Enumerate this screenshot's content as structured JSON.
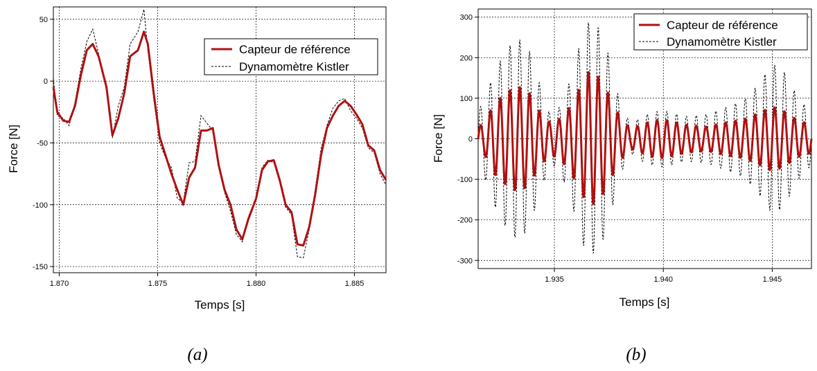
{
  "chart_data": [
    {
      "type": "line",
      "caption": "(a)",
      "xlabel": "Temps [s]",
      "ylabel": "Force [N]",
      "xlim": [
        1.8697,
        1.8866
      ],
      "ylim": [
        -155,
        60
      ],
      "xticks": [
        1.87,
        1.875,
        1.88,
        1.885
      ],
      "xtick_labels": [
        "1.870",
        "1.875",
        "1.880",
        "1.885"
      ],
      "yticks": [
        50,
        0,
        -50,
        -100,
        -150
      ],
      "ytick_labels": [
        "50",
        "0",
        "-50",
        "-100",
        "-150"
      ],
      "grid": true,
      "legend": "top-right",
      "series": [
        {
          "name": "Capteur de référence",
          "color": "#b01010",
          "style": "solid",
          "x": [
            1.8697,
            1.8699,
            1.8702,
            1.8705,
            1.8708,
            1.8711,
            1.8714,
            1.8717,
            1.872,
            1.8724,
            1.8727,
            1.873,
            1.8733,
            1.8736,
            1.874,
            1.8743,
            1.8745,
            1.8748,
            1.8751,
            1.8754,
            1.8757,
            1.876,
            1.8763,
            1.8766,
            1.8769,
            1.8772,
            1.8775,
            1.8778,
            1.8781,
            1.8784,
            1.8787,
            1.879,
            1.8793,
            1.8796,
            1.88,
            1.8803,
            1.8806,
            1.8809,
            1.8812,
            1.8815,
            1.8818,
            1.8821,
            1.8824,
            1.8827,
            1.883,
            1.8833,
            1.8836,
            1.8839,
            1.8842,
            1.8845,
            1.8848,
            1.8851,
            1.8854,
            1.8857,
            1.886,
            1.8863,
            1.8866
          ],
          "y": [
            -5,
            -25,
            -32,
            -33,
            -20,
            5,
            25,
            30,
            20,
            -5,
            -44,
            -30,
            -10,
            20,
            25,
            40,
            30,
            -10,
            -45,
            -60,
            -75,
            -88,
            -100,
            -78,
            -70,
            -40,
            -40,
            -38,
            -68,
            -88,
            -100,
            -120,
            -128,
            -112,
            -95,
            -72,
            -65,
            -64,
            -80,
            -100,
            -106,
            -132,
            -133,
            -118,
            -92,
            -60,
            -38,
            -28,
            -20,
            -16,
            -20,
            -27,
            -35,
            -52,
            -56,
            -72,
            -80
          ]
        },
        {
          "name": "Dynamomètre Kistler",
          "color": "#000000",
          "style": "dashed",
          "x": [
            1.8697,
            1.8699,
            1.8702,
            1.8705,
            1.8708,
            1.8711,
            1.8714,
            1.8717,
            1.872,
            1.8724,
            1.8727,
            1.873,
            1.8733,
            1.8736,
            1.874,
            1.8743,
            1.8745,
            1.8748,
            1.8751,
            1.8754,
            1.8757,
            1.876,
            1.8763,
            1.8766,
            1.8769,
            1.8772,
            1.8775,
            1.8778,
            1.8781,
            1.8784,
            1.8787,
            1.879,
            1.8793,
            1.8796,
            1.88,
            1.8803,
            1.8806,
            1.8809,
            1.8812,
            1.8815,
            1.8818,
            1.8821,
            1.8824,
            1.8827,
            1.883,
            1.8833,
            1.8836,
            1.8839,
            1.8842,
            1.8845,
            1.8848,
            1.8851,
            1.8854,
            1.8857,
            1.886,
            1.8863,
            1.8866
          ],
          "y": [
            2,
            -28,
            -30,
            -36,
            -17,
            10,
            32,
            42,
            22,
            -8,
            -46,
            -20,
            -5,
            30,
            40,
            58,
            25,
            -15,
            -50,
            -62,
            -70,
            -95,
            -98,
            -66,
            -65,
            -28,
            -34,
            -40,
            -70,
            -90,
            -105,
            -124,
            -130,
            -110,
            -94,
            -70,
            -64,
            -66,
            -82,
            -102,
            -108,
            -142,
            -143,
            -120,
            -88,
            -55,
            -36,
            -22,
            -16,
            -14,
            -24,
            -30,
            -38,
            -54,
            -58,
            -75,
            -84
          ]
        }
      ]
    },
    {
      "type": "line",
      "caption": "(b)",
      "xlabel": "Temps [s]",
      "ylabel": "Force [N]",
      "xlim": [
        1.9315,
        1.9468
      ],
      "ylim": [
        -320,
        320
      ],
      "xticks": [
        1.935,
        1.94,
        1.945
      ],
      "xtick_labels": [
        "1.935",
        "1.940",
        "1.945"
      ],
      "yticks": [
        300,
        200,
        100,
        0,
        -100,
        -200,
        -300
      ],
      "ytick_labels": [
        "300",
        "200",
        "100",
        "0",
        "-100",
        "-200",
        "-300"
      ],
      "grid": true,
      "legend": "top-right",
      "signal": {
        "x_start": 1.9315,
        "x_end": 1.9468,
        "period": 0.00045,
        "phase": 0.0,
        "envelope_x": [
          1.9315,
          1.9318,
          1.9322,
          1.9328,
          1.9333,
          1.9338,
          1.9343,
          1.9348,
          1.9352,
          1.9357,
          1.9363,
          1.9366,
          1.9371,
          1.9375,
          1.938,
          1.9385,
          1.939,
          1.9395,
          1.94,
          1.941,
          1.942,
          1.943,
          1.9437,
          1.9443,
          1.945,
          1.9455,
          1.9462,
          1.9468
        ],
        "envelope_ref": [
          30,
          40,
          85,
          115,
          130,
          118,
          70,
          40,
          48,
          78,
          140,
          168,
          150,
          110,
          55,
          25,
          35,
          45,
          48,
          35,
          30,
          42,
          48,
          62,
          80,
          70,
          45,
          35
        ],
        "envelope_kistler": [
          70,
          95,
          160,
          220,
          250,
          225,
          140,
          60,
          75,
          140,
          260,
          290,
          270,
          205,
          90,
          35,
          55,
          65,
          70,
          55,
          60,
          80,
          95,
          130,
          185,
          170,
          100,
          65
        ]
      },
      "series": [
        {
          "name": "Capteur de référence",
          "color": "#b01010",
          "style": "solid"
        },
        {
          "name": "Dynamomètre Kistler",
          "color": "#000000",
          "style": "dashed"
        }
      ]
    }
  ]
}
